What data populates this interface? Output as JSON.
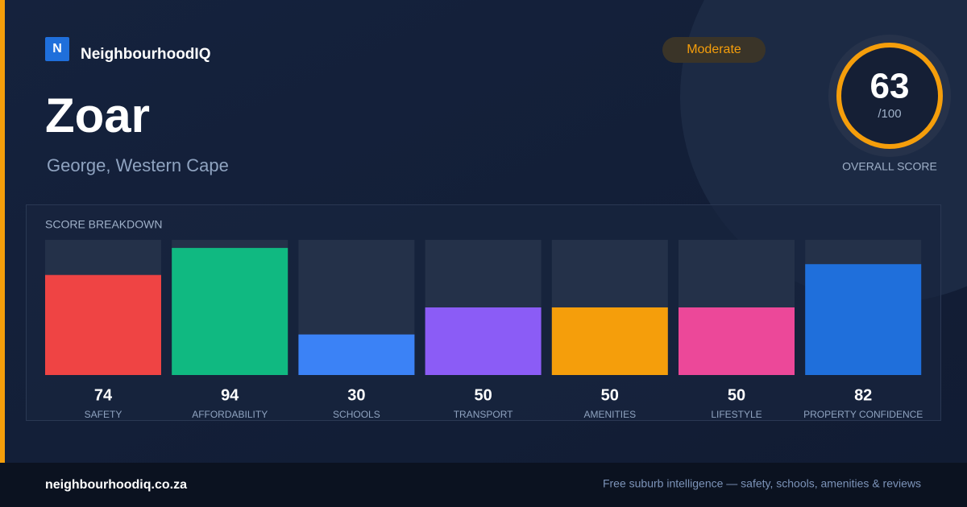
{
  "brand": {
    "logo": "N",
    "name": "NeighbourhoodIQ"
  },
  "header": {
    "title": "Zoar",
    "subtitle": "George, Western Cape",
    "badge": "Moderate"
  },
  "score": {
    "value": "63",
    "suffix": "/100",
    "label": "OVERALL SCORE"
  },
  "chart_data": {
    "type": "bar",
    "title": "SCORE BREAKDOWN",
    "categories": [
      "SAFETY",
      "AFFORDABILITY",
      "SCHOOLS",
      "TRANSPORT",
      "AMENITIES",
      "LIFESTYLE",
      "PROPERTY CONFIDENCE"
    ],
    "values": [
      74,
      94,
      30,
      50,
      50,
      50,
      82
    ],
    "colors": [
      "#ef4444",
      "#10b981",
      "#3b82f6",
      "#8b5cf6",
      "#f59e0b",
      "#ec4899",
      "#1f6fdb"
    ],
    "ylim": [
      0,
      100
    ]
  },
  "footer": {
    "site": "neighbourhoodiq.co.za",
    "tagline": "Free suburb intelligence — safety, schools, amenities & reviews"
  }
}
